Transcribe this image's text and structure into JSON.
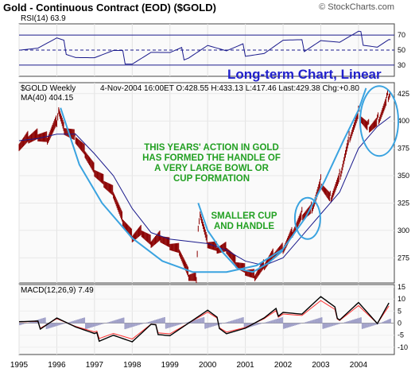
{
  "header": {
    "title": "Gold - Continuous Contract (EOD) ($GOLD)",
    "watermark": "© StockCharts.com"
  },
  "rsi_panel": {
    "label": "RSI(14) 63.9"
  },
  "price_panel": {
    "symbol_label": "$GOLD Weekly",
    "ma_label": "MA(40) 404.15",
    "quote": "4-Nov-2004 16:00ET O:428.55 H:433.13 L:417.46 Last:429.38 Chg:+0.80",
    "subtitle": "Long-term Chart, Linear",
    "annotation_bowl": [
      "THIS YEARS' ACTION IN GOLD",
      "HAS FORMED THE HANDLE OF",
      "A VERY LARGE BOWL OR",
      "CUP FORMATION"
    ],
    "annotation_small": [
      "SMALLER CUP",
      "AND HANDLE"
    ]
  },
  "macd_panel": {
    "label": "MACD(12,26,9) 7.49"
  },
  "colors": {
    "price": "#8b0000",
    "ma": "#1a1a8c",
    "rsi": "#1a1a8c",
    "curve": "#3aa3e0",
    "annotation": "#22a022",
    "macd_hist": "#a0a0c8",
    "subtitle": "#2222cc"
  },
  "chart_data": [
    {
      "type": "line",
      "title": "RSI(14) 63.9",
      "ylim": [
        15,
        85
      ],
      "yticks": [
        30,
        50,
        70
      ],
      "reference_lines": [
        30,
        50,
        70
      ],
      "x": [
        1995,
        1995.5,
        1996,
        1996.5,
        1997,
        1997.5,
        1998,
        1998.5,
        1999,
        1999.5,
        2000,
        2000.5,
        2001,
        2001.5,
        2002,
        2002.5,
        2003,
        2003.5,
        2004,
        2004.5,
        2004.85
      ],
      "values": [
        55,
        52,
        60,
        46,
        40,
        44,
        38,
        48,
        42,
        47,
        58,
        45,
        50,
        48,
        60,
        55,
        66,
        58,
        67,
        58,
        63.9
      ]
    },
    {
      "type": "line",
      "title": "$GOLD Weekly",
      "ylim": [
        252,
        435
      ],
      "yticks": [
        275,
        300,
        325,
        350,
        375,
        400,
        425
      ],
      "xticks": [
        "1995",
        "1996",
        "1997",
        "1998",
        "1999",
        "2000",
        "2001",
        "2002",
        "2003",
        "2004"
      ],
      "series": [
        {
          "name": "$GOLD Weekly",
          "x": [
            1995,
            1995.25,
            1995.5,
            1995.75,
            1996,
            1996.05,
            1996.2,
            1996.5,
            1996.75,
            1997,
            1997.25,
            1997.5,
            1997.75,
            1998,
            1998.25,
            1998.5,
            1998.75,
            1999,
            1999.25,
            1999.5,
            1999.7,
            1999.75,
            1999.8,
            2000,
            2000.25,
            2000.5,
            2000.75,
            2001,
            2001.25,
            2001.5,
            2001.75,
            2002,
            2002.25,
            2002.5,
            2002.75,
            2003,
            2003.25,
            2003.5,
            2003.75,
            2004,
            2004.25,
            2004.5,
            2004.75,
            2004.85
          ],
          "values": [
            378,
            385,
            387,
            384,
            400,
            412,
            393,
            385,
            372,
            355,
            345,
            335,
            310,
            295,
            300,
            290,
            295,
            288,
            283,
            260,
            258,
            305,
            318,
            290,
            285,
            285,
            272,
            265,
            260,
            270,
            280,
            285,
            300,
            315,
            320,
            345,
            330,
            350,
            385,
            408,
            395,
            400,
            420,
            429.38
          ]
        },
        {
          "name": "MA(40) 404.15",
          "x": [
            1995,
            1995.5,
            1996,
            1996.5,
            1997,
            1997.5,
            1998,
            1998.5,
            1999,
            1999.5,
            2000,
            2000.5,
            2001,
            2001.5,
            2002,
            2002.5,
            2003,
            2003.5,
            2004,
            2004.5,
            2004.85
          ],
          "values": [
            382,
            384,
            388,
            388,
            370,
            350,
            320,
            298,
            292,
            290,
            288,
            282,
            272,
            268,
            275,
            295,
            315,
            335,
            375,
            395,
            404.15
          ]
        }
      ]
    },
    {
      "type": "line",
      "title": "MACD(12,26,9) 7.49",
      "ylim": [
        -13,
        16
      ],
      "yticks": [
        -10,
        -5,
        0,
        5,
        10,
        15
      ],
      "x": [
        1995,
        1995.5,
        1996,
        1996.5,
        1997,
        1997.5,
        1998,
        1998.5,
        1999,
        1999.5,
        2000,
        2000.5,
        2001,
        2001.5,
        2002,
        2002.5,
        2003,
        2003.5,
        2004,
        2004.5,
        2004.85
      ],
      "values": [
        0,
        -1,
        3,
        -2,
        -6,
        -4,
        -8,
        -2,
        -4,
        0,
        4,
        -3,
        -2,
        1,
        6,
        4,
        10,
        3,
        9,
        -1,
        7.49
      ]
    }
  ]
}
